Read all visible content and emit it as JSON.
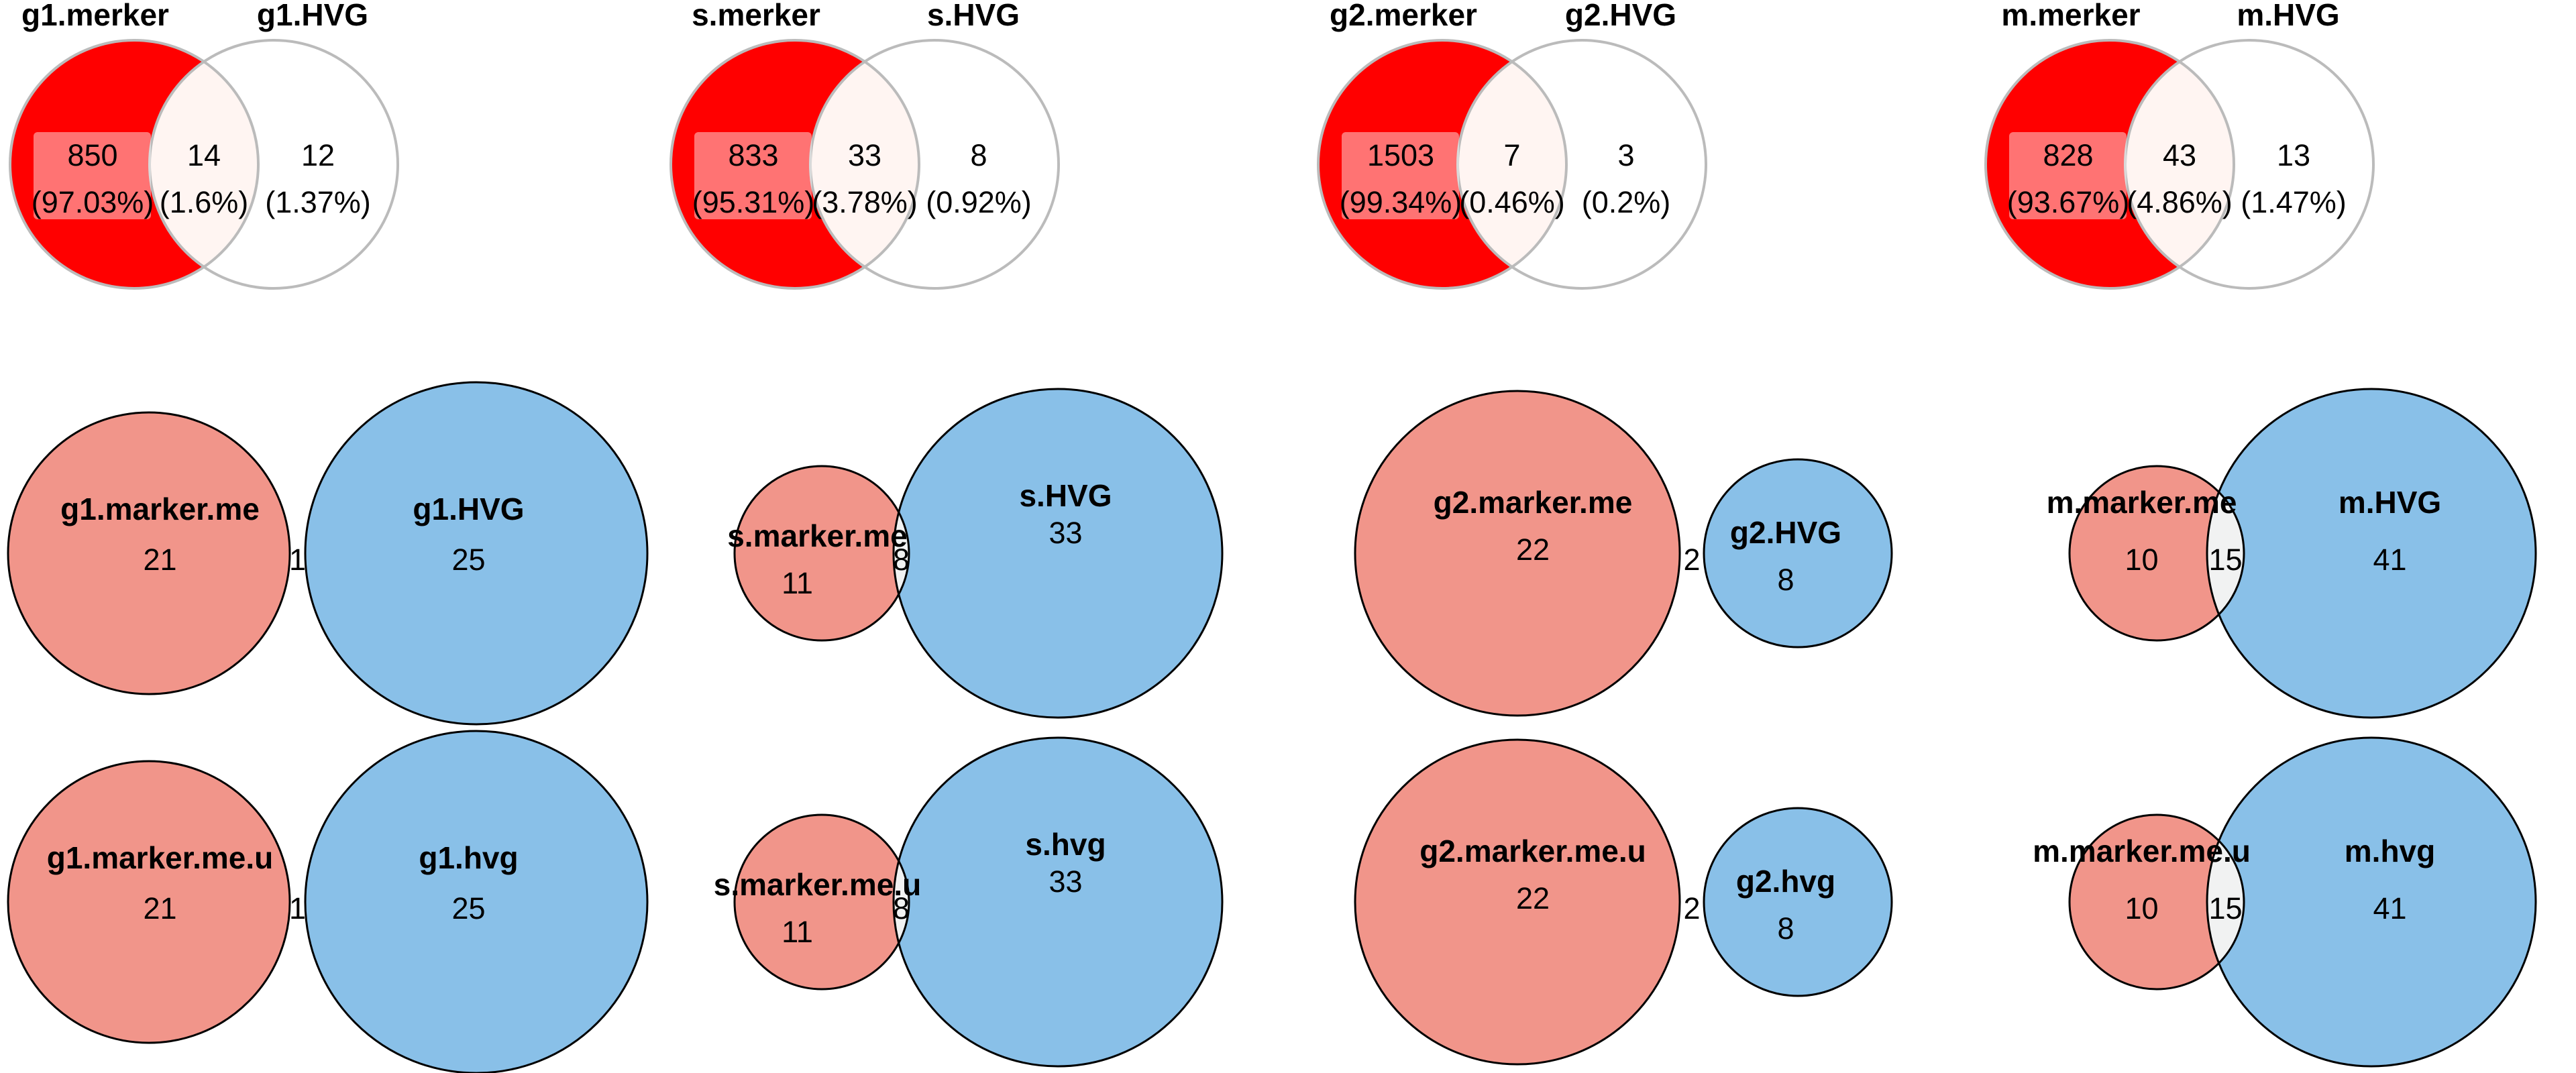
{
  "colors": {
    "red_fill": "#ff0000",
    "red_overlap": "#fff5f2",
    "pink": "#f1958a",
    "blue": "#89c0e8",
    "overlap": "#f1f2f2",
    "outline_light": "#bbbbbb",
    "outline_dark": "#000000"
  },
  "panels": [
    {
      "row": "proportional-percent",
      "columns": [
        {
          "left_label": "g1.merker",
          "right_label": "g1.HVG",
          "left_count": "850",
          "left_pct": "(97.03%)",
          "both_count": "14",
          "both_pct": "(1.6%)",
          "right_count": "12",
          "right_pct": "(1.37%)"
        },
        {
          "left_label": "s.merker",
          "right_label": "s.HVG",
          "left_count": "833",
          "left_pct": "(95.31%)",
          "both_count": "33",
          "both_pct": "(3.78%)",
          "right_count": "8",
          "right_pct": "(0.92%)"
        },
        {
          "left_label": "g2.merker",
          "right_label": "g2.HVG",
          "left_count": "1503",
          "left_pct": "(99.34%)",
          "both_count": "7",
          "both_pct": "(0.46%)",
          "right_count": "3",
          "right_pct": "(0.2%)"
        },
        {
          "left_label": "m.merker",
          "right_label": "m.HVG",
          "left_count": "828",
          "left_pct": "(93.67%)",
          "both_count": "43",
          "both_pct": "(4.86%)",
          "right_count": "13",
          "right_pct": "(1.47%)"
        }
      ]
    },
    {
      "row": "area-proportional-me",
      "columns": [
        {
          "left_label": "g1.marker.me",
          "right_label": "g1.HVG",
          "left_only": "21",
          "both": "1",
          "right_only": "25"
        },
        {
          "left_label": "s.marker.me",
          "right_label": "s.HVG",
          "left_only": "11",
          "both": "8",
          "right_only": "33"
        },
        {
          "left_label": "g2.marker.me",
          "right_label": "g2.HVG",
          "left_only": "22",
          "both": "2",
          "right_only": "8"
        },
        {
          "left_label": "m.marker.me",
          "right_label": "m.HVG",
          "left_only": "10",
          "both": "15",
          "right_only": "41"
        }
      ]
    },
    {
      "row": "area-proportional-me-u",
      "columns": [
        {
          "left_label": "g1.marker.me.u",
          "right_label": "g1.hvg",
          "left_only": "21",
          "both": "1",
          "right_only": "25"
        },
        {
          "left_label": "s.marker.me.u",
          "right_label": "s.hvg",
          "left_only": "11",
          "both": "8",
          "right_only": "33"
        },
        {
          "left_label": "g2.marker.me.u",
          "right_label": "g2.hvg",
          "left_only": "22",
          "both": "2",
          "right_only": "8"
        },
        {
          "left_label": "m.marker.me.u",
          "right_label": "m.hvg",
          "left_only": "10",
          "both": "15",
          "right_only": "41"
        }
      ]
    }
  ]
}
